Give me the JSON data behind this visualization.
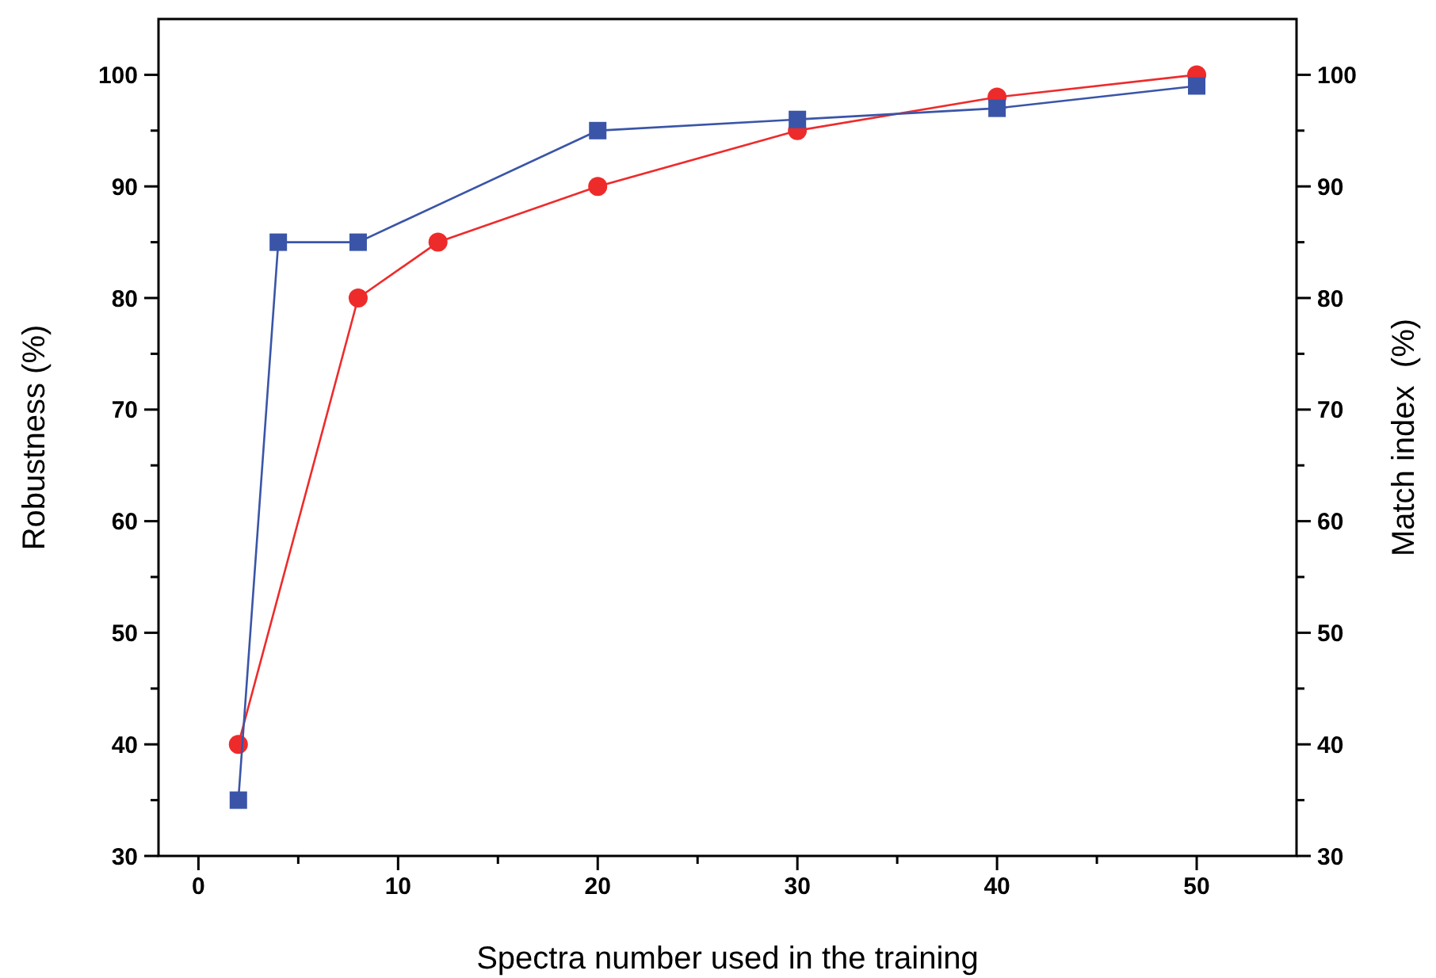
{
  "chart_data": {
    "type": "line",
    "xlabel": "Spectra number used in the training",
    "ylabel": "Robustness (%)",
    "y2label": "Match index  (%)",
    "xlim": [
      -2,
      55
    ],
    "xticks": [
      0,
      {
        "value": 5,
        "label": null
      },
      10,
      {
        "value": 15,
        "label": null
      },
      20,
      {
        "value": 25,
        "label": null
      },
      30,
      {
        "value": 35,
        "label": null
      },
      40,
      {
        "value": 45,
        "label": null
      },
      50
    ],
    "ylim": [
      30,
      105
    ],
    "yticks": [
      30,
      {
        "value": 35,
        "label": null
      },
      40,
      {
        "value": 45,
        "label": null
      },
      50,
      {
        "value": 55,
        "label": null
      },
      60,
      {
        "value": 65,
        "label": null
      },
      70,
      {
        "value": 75,
        "label": null
      },
      80,
      {
        "value": 85,
        "label": null
      },
      90,
      {
        "value": 95,
        "label": null
      },
      100
    ],
    "y2lim": [
      30,
      105
    ],
    "y2ticks": [
      30,
      {
        "value": 35,
        "label": null
      },
      40,
      {
        "value": 45,
        "label": null
      },
      50,
      {
        "value": 55,
        "label": null
      },
      60,
      {
        "value": 65,
        "label": null
      },
      70,
      {
        "value": 75,
        "label": null
      },
      80,
      {
        "value": 85,
        "label": null
      },
      90,
      {
        "value": 95,
        "label": null
      },
      100
    ],
    "grid": false,
    "series": [
      {
        "color": "#ee2b2b",
        "marker": "circle",
        "x": [
          2,
          8,
          12,
          20,
          30,
          40,
          50
        ],
        "values": [
          40,
          80,
          85,
          90,
          95,
          98,
          100
        ]
      },
      {
        "color": "#3a55a8",
        "marker": "square",
        "x": [
          2,
          4,
          8,
          20,
          30,
          40,
          50
        ],
        "values": [
          35,
          85,
          85,
          95,
          96,
          97,
          99
        ]
      }
    ]
  }
}
